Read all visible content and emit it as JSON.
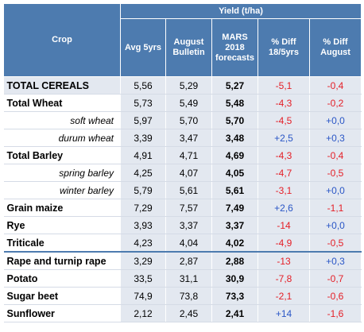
{
  "header": {
    "crop_label": "Crop",
    "group_label": "Yield (t/ha)",
    "col_avg": "Avg 5yrs",
    "col_august_line1": "August",
    "col_august_line2": "Bulletin",
    "col_mars_line1": "MARS",
    "col_mars_line2": "2018",
    "col_mars_line3": "forecasts",
    "col_diff1_line1": "% Diff",
    "col_diff1_line2": "18/5yrs",
    "col_diff2_line1": "% Diff",
    "col_diff2_line2": "August"
  },
  "rows": [
    {
      "crop": "TOTAL CEREALS",
      "avg": "5,56",
      "august": "5,29",
      "mars": "5,27",
      "diff5": "-5,1",
      "diff5_sign": "neg",
      "diffaug": "-0,4",
      "diffaug_sign": "neg",
      "style": "bold",
      "highlight": true
    },
    {
      "crop": "Total Wheat",
      "avg": "5,73",
      "august": "5,49",
      "mars": "5,48",
      "diff5": "-4,3",
      "diff5_sign": "neg",
      "diffaug": "-0,2",
      "diffaug_sign": "neg",
      "style": "bold"
    },
    {
      "crop": "soft wheat",
      "avg": "5,97",
      "august": "5,70",
      "mars": "5,70",
      "diff5": "-4,5",
      "diff5_sign": "neg",
      "diffaug": "+0,0",
      "diffaug_sign": "pos",
      "style": "sub"
    },
    {
      "crop": "durum wheat",
      "avg": "3,39",
      "august": "3,47",
      "mars": "3,48",
      "diff5": "+2,5",
      "diff5_sign": "pos",
      "diffaug": "+0,3",
      "diffaug_sign": "pos",
      "style": "sub"
    },
    {
      "crop": "Total Barley",
      "avg": "4,91",
      "august": "4,71",
      "mars": "4,69",
      "diff5": "-4,3",
      "diff5_sign": "neg",
      "diffaug": "-0,4",
      "diffaug_sign": "neg",
      "style": "bold"
    },
    {
      "crop": "spring barley",
      "avg": "4,25",
      "august": "4,07",
      "mars": "4,05",
      "diff5": "-4,7",
      "diff5_sign": "neg",
      "diffaug": "-0,5",
      "diffaug_sign": "neg",
      "style": "sub"
    },
    {
      "crop": "winter barley",
      "avg": "5,79",
      "august": "5,61",
      "mars": "5,61",
      "diff5": "-3,1",
      "diff5_sign": "neg",
      "diffaug": "+0,0",
      "diffaug_sign": "pos",
      "style": "sub"
    },
    {
      "crop": "Grain maize",
      "avg": "7,29",
      "august": "7,57",
      "mars": "7,49",
      "diff5": "+2,6",
      "diff5_sign": "pos",
      "diffaug": "-1,1",
      "diffaug_sign": "neg",
      "style": "bold"
    },
    {
      "crop": "Rye",
      "avg": "3,93",
      "august": "3,37",
      "mars": "3,37",
      "diff5": "-14",
      "diff5_sign": "neg",
      "diffaug": "+0,0",
      "diffaug_sign": "pos",
      "style": "bold"
    },
    {
      "crop": "Triticale",
      "avg": "4,23",
      "august": "4,04",
      "mars": "4,02",
      "diff5": "-4,9",
      "diff5_sign": "neg",
      "diffaug": "-0,5",
      "diffaug_sign": "neg",
      "style": "bold"
    },
    {
      "crop": "Rape and turnip rape",
      "avg": "3,29",
      "august": "2,87",
      "mars": "2,88",
      "diff5": "-13",
      "diff5_sign": "neg",
      "diffaug": "+0,3",
      "diffaug_sign": "pos",
      "style": "bold",
      "separator": true
    },
    {
      "crop": "Potato",
      "avg": "33,5",
      "august": "31,1",
      "mars": "30,9",
      "diff5": "-7,8",
      "diff5_sign": "neg",
      "diffaug": "-0,7",
      "diffaug_sign": "neg",
      "style": "bold"
    },
    {
      "crop": "Sugar beet",
      "avg": "74,9",
      "august": "73,8",
      "mars": "73,3",
      "diff5": "-2,1",
      "diff5_sign": "neg",
      "diffaug": "-0,6",
      "diffaug_sign": "neg",
      "style": "bold"
    },
    {
      "crop": "Sunflower",
      "avg": "2,12",
      "august": "2,45",
      "mars": "2,41",
      "diff5": "+14",
      "diff5_sign": "pos",
      "diffaug": "-1,6",
      "diffaug_sign": "neg",
      "style": "bold"
    }
  ]
}
